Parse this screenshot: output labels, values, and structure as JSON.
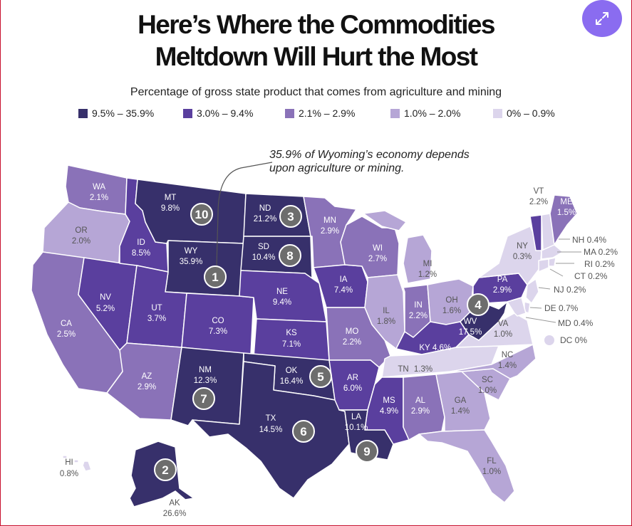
{
  "title_line1": "Here’s Where the Commodities",
  "title_line2": "Meltdown Will Hurt the Most",
  "subtitle": "Percentage of gross state product that comes from agriculture and mining",
  "annotation_line1": "35.9% of Wyoming’s economy depends",
  "annotation_line2": "upon agriculture or mining.",
  "expand_icon": "expand-arrows-icon",
  "legend": [
    {
      "label": "9.5% – 35.9%",
      "color": "#37306b"
    },
    {
      "label": "3.0% – 9.4%",
      "color": "#5a3f9e"
    },
    {
      "label": "2.1% – 2.9%",
      "color": "#8a72b8"
    },
    {
      "label": "1.0% – 2.0%",
      "color": "#b6a6d6"
    },
    {
      "label": "0% – 0.9%",
      "color": "#dcd5ec"
    }
  ],
  "states": {
    "WA": {
      "abbr": "WA",
      "pct": "2.1%"
    },
    "OR": {
      "abbr": "OR",
      "pct": "2.0%"
    },
    "CA": {
      "abbr": "CA",
      "pct": "2.5%"
    },
    "ID": {
      "abbr": "ID",
      "pct": "8.5%"
    },
    "NV": {
      "abbr": "NV",
      "pct": "5.2%"
    },
    "MT": {
      "abbr": "MT",
      "pct": "9.8%"
    },
    "WY": {
      "abbr": "WY",
      "pct": "35.9%"
    },
    "UT": {
      "abbr": "UT",
      "pct": "3.7%"
    },
    "AZ": {
      "abbr": "AZ",
      "pct": "2.9%"
    },
    "CO": {
      "abbr": "CO",
      "pct": "7.3%"
    },
    "NM": {
      "abbr": "NM",
      "pct": "12.3%"
    },
    "ND": {
      "abbr": "ND",
      "pct": "21.2%"
    },
    "SD": {
      "abbr": "SD",
      "pct": "10.4%"
    },
    "NE": {
      "abbr": "NE",
      "pct": "9.4%"
    },
    "KS": {
      "abbr": "KS",
      "pct": "7.1%"
    },
    "OK": {
      "abbr": "OK",
      "pct": "16.4%"
    },
    "TX": {
      "abbr": "TX",
      "pct": "14.5%"
    },
    "MN": {
      "abbr": "MN",
      "pct": "2.9%"
    },
    "IA": {
      "abbr": "IA",
      "pct": "7.4%"
    },
    "MO": {
      "abbr": "MO",
      "pct": "2.2%"
    },
    "AR": {
      "abbr": "AR",
      "pct": "6.0%"
    },
    "LA": {
      "abbr": "LA",
      "pct": "10.1%"
    },
    "WI": {
      "abbr": "WI",
      "pct": "2.7%"
    },
    "IL": {
      "abbr": "IL",
      "pct": "1.8%"
    },
    "MI": {
      "abbr": "MI",
      "pct": "1.2%"
    },
    "IN": {
      "abbr": "IN",
      "pct": "2.2%"
    },
    "OH": {
      "abbr": "OH",
      "pct": "1.6%"
    },
    "KY": {
      "abbr": "KY",
      "pct": "4.6%"
    },
    "TN": {
      "abbr": "TN",
      "pct": "1.3%"
    },
    "MS": {
      "abbr": "MS",
      "pct": "4.9%"
    },
    "AL": {
      "abbr": "AL",
      "pct": "2.9%"
    },
    "GA": {
      "abbr": "GA",
      "pct": "1.4%"
    },
    "FL": {
      "abbr": "FL",
      "pct": "1.0%"
    },
    "SC": {
      "abbr": "SC",
      "pct": "1.0%"
    },
    "NC": {
      "abbr": "NC",
      "pct": "1.4%"
    },
    "VA": {
      "abbr": "VA",
      "pct": "1.0%"
    },
    "WV": {
      "abbr": "WV",
      "pct": "17.5%"
    },
    "PA": {
      "abbr": "PA",
      "pct": "2.9%"
    },
    "NY": {
      "abbr": "NY",
      "pct": "0.3%"
    },
    "VT": {
      "abbr": "VT",
      "pct": "2.2%"
    },
    "ME": {
      "abbr": "ME",
      "pct": "1.5%"
    },
    "AK": {
      "abbr": "AK",
      "pct": "26.6%"
    },
    "HI": {
      "abbr": "HI",
      "pct": "0.8%"
    }
  },
  "side_labels": {
    "NH": "NH  0.4%",
    "MA": "MA  0.2%",
    "RI": "RI  0.2%",
    "CT": "CT  0.2%",
    "NJ": "NJ  0.2%",
    "DE": "DE  0.7%",
    "MD": "MD  0.4%",
    "DC": "DC  0%"
  },
  "ranks": {
    "WY": "1",
    "AK": "2",
    "ND": "3",
    "WV": "4",
    "OK": "5",
    "TX": "6",
    "NM": "7",
    "SD": "8",
    "LA": "9",
    "MT": "10"
  }
}
